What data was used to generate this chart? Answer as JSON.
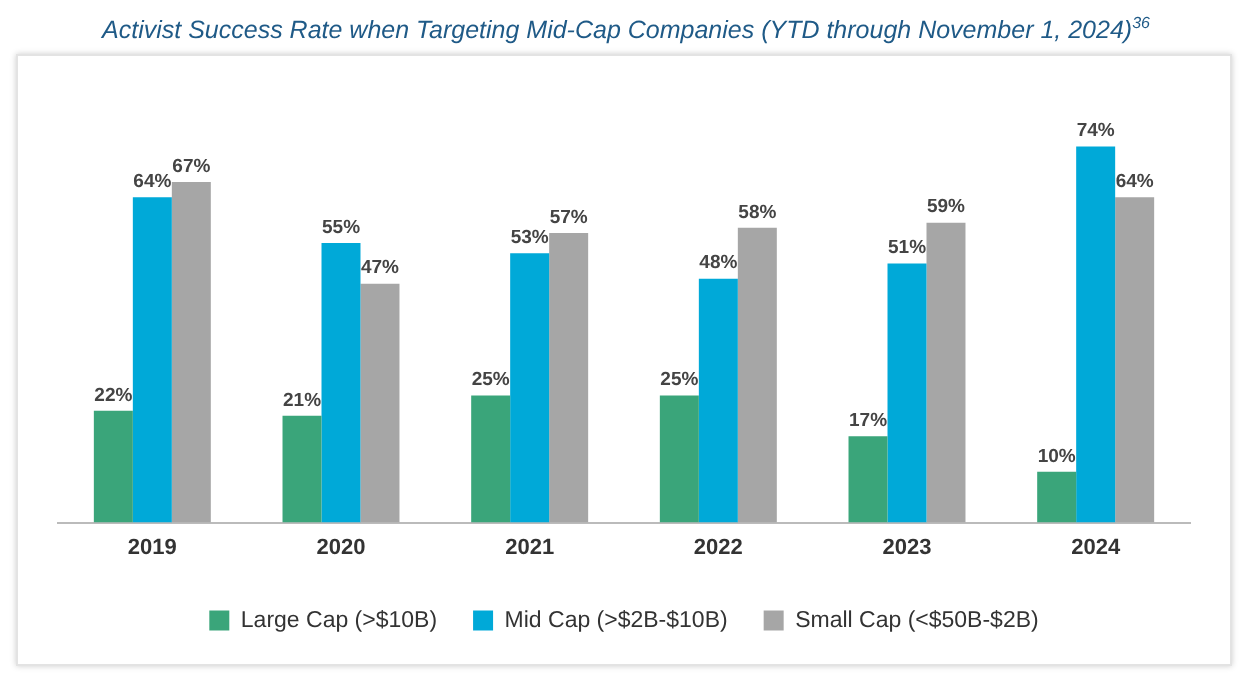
{
  "chart_data": {
    "type": "bar",
    "title": "Activist Success Rate when Targeting Mid-Cap Companies (YTD through November 1, 2024)$^{36}$",
    "categories": [
      "2019",
      "2020",
      "2021",
      "2022",
      "2023",
      "2024"
    ],
    "series": [
      {
        "name": "Large Cap (>$10B)",
        "color": "#3aa57a",
        "values": [
          22,
          21,
          25,
          25,
          17,
          10
        ],
        "value_labels": [
          "22%",
          "21%",
          "25%",
          "25%",
          "17%",
          "10%"
        ]
      },
      {
        "name": "Mid Cap (>$2B-$10B)",
        "color": "#00a9d8",
        "values": [
          64,
          55,
          53,
          48,
          51,
          74
        ],
        "value_labels": [
          "64%",
          "55%",
          "53%",
          "48%",
          "51%",
          "74%"
        ]
      },
      {
        "name": "Small Cap (<$50B-$2B)",
        "color": "#a6a6a6",
        "values": [
          67,
          47,
          57,
          58,
          59,
          64
        ],
        "value_labels": [
          "67%",
          "47%",
          "57%",
          "58%",
          "59%",
          "64%"
        ]
      }
    ],
    "legend": "bottom",
    "grid": false
  }
}
